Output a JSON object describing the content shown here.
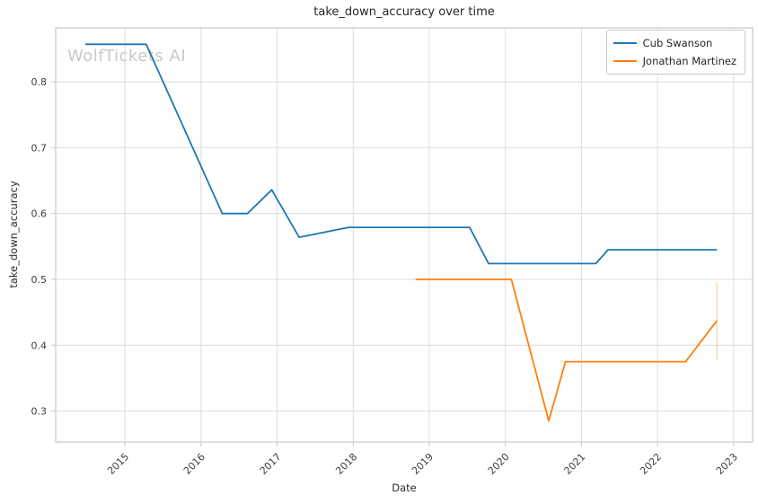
{
  "watermark": "WolfTickets AI",
  "colors": {
    "background": "#ffffff",
    "grid": "#dcdcdc",
    "spine": "#c9c9c9",
    "tick_label": "#3d3d3d",
    "text": "#2b2b2b",
    "watermark": "#c9c9c9",
    "series_blue": "#1f77b4",
    "series_orange": "#ff7f0e"
  },
  "chart_data": {
    "type": "line",
    "title": "take_down_accuracy over time",
    "xlabel": "Date",
    "ylabel": "take_down_accuracy",
    "grid": true,
    "legend_position": "upper right",
    "x_tick_labels": [
      "2015",
      "2016",
      "2017",
      "2018",
      "2019",
      "2020",
      "2021",
      "2022",
      "2023"
    ],
    "x_tick_values": [
      2015,
      2016,
      2017,
      2018,
      2019,
      2020,
      2021,
      2022,
      2023
    ],
    "y_ticks": [
      0.3,
      0.4,
      0.5,
      0.6,
      0.7,
      0.8
    ],
    "xlim": [
      2014.09,
      2023.25
    ],
    "ylim": [
      0.253,
      0.882
    ],
    "series": [
      {
        "name": "Cub Swanson",
        "color": "#1f77b4",
        "x": [
          2014.48,
          2015.28,
          2016.28,
          2016.61,
          2016.93,
          2017.29,
          2017.94,
          2019.53,
          2019.78,
          2021.19,
          2021.35,
          2022.78
        ],
        "y": [
          0.857,
          0.857,
          0.6,
          0.6,
          0.636,
          0.564,
          0.579,
          0.579,
          0.524,
          0.524,
          0.545,
          0.545
        ]
      },
      {
        "name": "Jonathan Martinez",
        "color": "#ff7f0e",
        "x": [
          2018.82,
          2020.08,
          2020.57,
          2020.79,
          2022.37,
          2022.78
        ],
        "y": [
          0.5,
          0.5,
          0.285,
          0.375,
          0.375,
          0.437
        ]
      }
    ],
    "annotation_line": {
      "x": 2022.78,
      "y_from": 0.495,
      "y_to": 0.378,
      "color": "#ff7f0e",
      "opacity": 0.3
    }
  }
}
